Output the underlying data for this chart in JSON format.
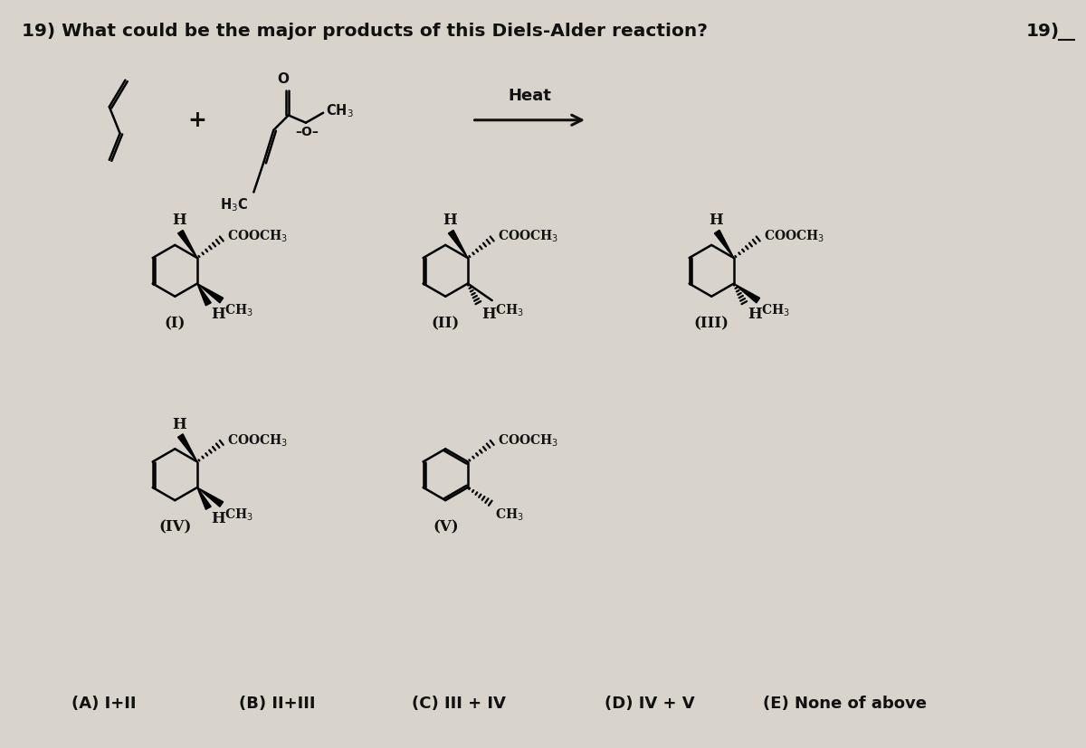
{
  "title": "19) What could be the major products of this Diels-Alder reaction?",
  "title_number": "19)",
  "bg_color": "#d8d4cc",
  "text_color": "#111111",
  "answer_choices": [
    "(A) I+II",
    "(B) II+III",
    "(C) III + IV",
    "(D) IV + V",
    "(E) None of above"
  ],
  "heat_label": "Heat",
  "struct_labels": [
    "(I)",
    "(II)",
    "(III)",
    "(IV)",
    "(V)"
  ]
}
